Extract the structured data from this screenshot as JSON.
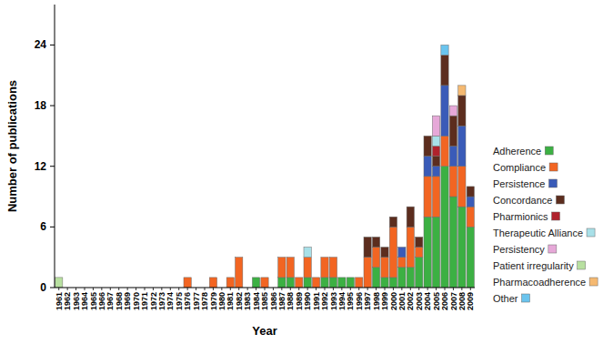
{
  "chart_data": {
    "type": "bar",
    "stacked": true,
    "grid": false,
    "legend": "right",
    "x_label": "Year",
    "y_label": "Number of publications",
    "categories": [
      "1961",
      "1962",
      "1963",
      "1964",
      "1965",
      "1966",
      "1967",
      "1968",
      "1969",
      "1970",
      "1971",
      "1972",
      "1973",
      "1974",
      "1975",
      "1976",
      "1977",
      "1978",
      "1979",
      "1980",
      "1981",
      "1982",
      "1983",
      "1984",
      "1985",
      "1986",
      "1987",
      "1988",
      "1989",
      "1990",
      "1991",
      "1992",
      "1993",
      "1994",
      "1995",
      "1996",
      "1997",
      "1998",
      "1999",
      "2000",
      "2001",
      "2002",
      "2003",
      "2004",
      "2005",
      "2006",
      "2007",
      "2008",
      "2009"
    ],
    "ylim": [
      0,
      28
    ],
    "yticks": [
      0,
      6,
      12,
      18,
      24
    ],
    "series": [
      {
        "name": "Adherence",
        "color": "#3cb043",
        "values": [
          0,
          0,
          0,
          0,
          0,
          0,
          0,
          0,
          0,
          0,
          0,
          0,
          0,
          0,
          0,
          0,
          0,
          0,
          0,
          0,
          0,
          0,
          0,
          1,
          0,
          0,
          1,
          1,
          0,
          1,
          0,
          1,
          1,
          1,
          1,
          0,
          0,
          2,
          1,
          1,
          2,
          2,
          3,
          7,
          7,
          12,
          9,
          8,
          6
        ]
      },
      {
        "name": "Compliance",
        "color": "#f26522",
        "values": [
          0,
          0,
          0,
          0,
          0,
          0,
          0,
          0,
          0,
          0,
          0,
          0,
          0,
          0,
          0,
          1,
          0,
          0,
          1,
          0,
          1,
          3,
          0,
          0,
          1,
          0,
          2,
          2,
          1,
          2,
          1,
          2,
          2,
          0,
          0,
          1,
          3,
          2,
          2,
          5,
          1,
          4,
          1,
          4,
          4,
          3,
          3,
          4,
          2
        ]
      },
      {
        "name": "Persistence",
        "color": "#3a5bb8",
        "values": [
          0,
          0,
          0,
          0,
          0,
          0,
          0,
          0,
          0,
          0,
          0,
          0,
          0,
          0,
          0,
          0,
          0,
          0,
          0,
          0,
          0,
          0,
          0,
          0,
          0,
          0,
          0,
          0,
          0,
          0,
          0,
          0,
          0,
          0,
          0,
          0,
          0,
          0,
          0,
          0,
          1,
          0,
          0,
          2,
          1,
          5,
          2,
          4,
          1
        ]
      },
      {
        "name": "Concordance",
        "color": "#5c2d1e",
        "values": [
          0,
          0,
          0,
          0,
          0,
          0,
          0,
          0,
          0,
          0,
          0,
          0,
          0,
          0,
          0,
          0,
          0,
          0,
          0,
          0,
          0,
          0,
          0,
          0,
          0,
          0,
          0,
          0,
          0,
          0,
          0,
          0,
          0,
          0,
          0,
          0,
          2,
          1,
          1,
          1,
          0,
          2,
          1,
          2,
          1,
          3,
          3,
          3,
          1
        ]
      },
      {
        "name": "Pharmionics",
        "color": "#b0222c",
        "values": [
          0,
          0,
          0,
          0,
          0,
          0,
          0,
          0,
          0,
          0,
          0,
          0,
          0,
          0,
          0,
          0,
          0,
          0,
          0,
          0,
          0,
          0,
          0,
          0,
          0,
          0,
          0,
          0,
          0,
          0,
          0,
          0,
          0,
          0,
          0,
          0,
          0,
          0,
          0,
          0,
          0,
          0,
          0,
          0,
          1,
          0,
          0,
          0,
          0
        ]
      },
      {
        "name": "Therapeutic Alliance",
        "color": "#a8e0e8",
        "values": [
          0,
          0,
          0,
          0,
          0,
          0,
          0,
          0,
          0,
          0,
          0,
          0,
          0,
          0,
          0,
          0,
          0,
          0,
          0,
          0,
          0,
          0,
          0,
          0,
          0,
          0,
          0,
          0,
          0,
          1,
          0,
          0,
          0,
          0,
          0,
          0,
          0,
          0,
          0,
          0,
          0,
          0,
          0,
          0,
          1,
          0,
          0,
          0,
          0
        ]
      },
      {
        "name": "Persistency",
        "color": "#e6a8d8",
        "values": [
          0,
          0,
          0,
          0,
          0,
          0,
          0,
          0,
          0,
          0,
          0,
          0,
          0,
          0,
          0,
          0,
          0,
          0,
          0,
          0,
          0,
          0,
          0,
          0,
          0,
          0,
          0,
          0,
          0,
          0,
          0,
          0,
          0,
          0,
          0,
          0,
          0,
          0,
          0,
          0,
          0,
          0,
          0,
          0,
          2,
          0,
          1,
          0,
          0
        ]
      },
      {
        "name": "Patient irregularity",
        "color": "#b8e0a0",
        "values": [
          1,
          0,
          0,
          0,
          0,
          0,
          0,
          0,
          0,
          0,
          0,
          0,
          0,
          0,
          0,
          0,
          0,
          0,
          0,
          0,
          0,
          0,
          0,
          0,
          0,
          0,
          0,
          0,
          0,
          0,
          0,
          0,
          0,
          0,
          0,
          0,
          0,
          0,
          0,
          0,
          0,
          0,
          0,
          0,
          0,
          0,
          0,
          0,
          0
        ]
      },
      {
        "name": "Pharmacoadherence",
        "color": "#f5b971",
        "values": [
          0,
          0,
          0,
          0,
          0,
          0,
          0,
          0,
          0,
          0,
          0,
          0,
          0,
          0,
          0,
          0,
          0,
          0,
          0,
          0,
          0,
          0,
          0,
          0,
          0,
          0,
          0,
          0,
          0,
          0,
          0,
          0,
          0,
          0,
          0,
          0,
          0,
          0,
          0,
          0,
          0,
          0,
          0,
          0,
          0,
          0,
          0,
          1,
          0
        ]
      },
      {
        "name": "Other",
        "color": "#6ac4ee",
        "values": [
          0,
          0,
          0,
          0,
          0,
          0,
          0,
          0,
          0,
          0,
          0,
          0,
          0,
          0,
          0,
          0,
          0,
          0,
          0,
          0,
          0,
          0,
          0,
          0,
          0,
          0,
          0,
          0,
          0,
          0,
          0,
          0,
          0,
          0,
          0,
          0,
          0,
          0,
          0,
          0,
          0,
          0,
          0,
          0,
          0,
          1,
          0,
          0,
          0
        ]
      }
    ]
  }
}
